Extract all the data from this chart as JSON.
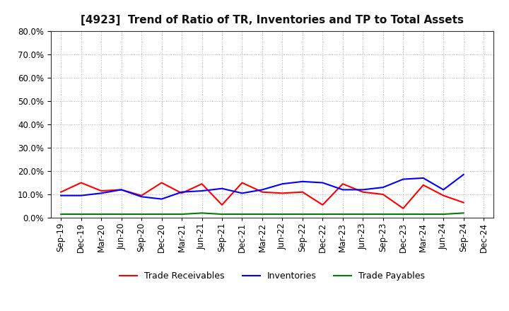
{
  "title": "[4923]  Trend of Ratio of TR, Inventories and TP to Total Assets",
  "x_labels": [
    "Sep-19",
    "Dec-19",
    "Mar-20",
    "Jun-20",
    "Sep-20",
    "Dec-20",
    "Mar-21",
    "Jun-21",
    "Sep-21",
    "Dec-21",
    "Mar-22",
    "Jun-22",
    "Sep-22",
    "Dec-22",
    "Mar-23",
    "Jun-23",
    "Sep-23",
    "Dec-23",
    "Mar-24",
    "Jun-24",
    "Sep-24",
    "Dec-24"
  ],
  "trade_receivables": [
    11.0,
    15.0,
    11.5,
    12.0,
    9.5,
    15.0,
    10.5,
    14.5,
    5.5,
    15.0,
    11.0,
    10.5,
    11.0,
    5.5,
    14.5,
    11.0,
    10.0,
    4.0,
    14.0,
    9.5,
    6.5,
    null
  ],
  "inventories": [
    9.5,
    9.5,
    10.5,
    12.0,
    9.0,
    8.0,
    11.0,
    11.5,
    12.5,
    10.5,
    12.0,
    14.5,
    15.5,
    15.0,
    12.0,
    12.0,
    13.0,
    16.5,
    17.0,
    12.0,
    18.5,
    null
  ],
  "trade_payables": [
    1.5,
    1.5,
    1.5,
    1.5,
    1.5,
    1.5,
    1.5,
    2.0,
    1.5,
    1.5,
    1.5,
    1.5,
    1.5,
    1.5,
    1.5,
    1.5,
    1.5,
    1.5,
    1.5,
    1.5,
    2.0,
    null
  ],
  "tr_color": "#ff0000",
  "inv_color": "#0000ff",
  "tp_color": "#008000",
  "ylim": [
    0,
    80
  ],
  "yticks": [
    0,
    10,
    20,
    30,
    40,
    50,
    60,
    70,
    80
  ],
  "legend_labels": [
    "Trade Receivables",
    "Inventories",
    "Trade Payables"
  ],
  "grid_color": "#999999",
  "background_color": "#ffffff",
  "line_width": 1.5,
  "title_fontsize": 11,
  "tick_fontsize": 8.5,
  "legend_fontsize": 9
}
